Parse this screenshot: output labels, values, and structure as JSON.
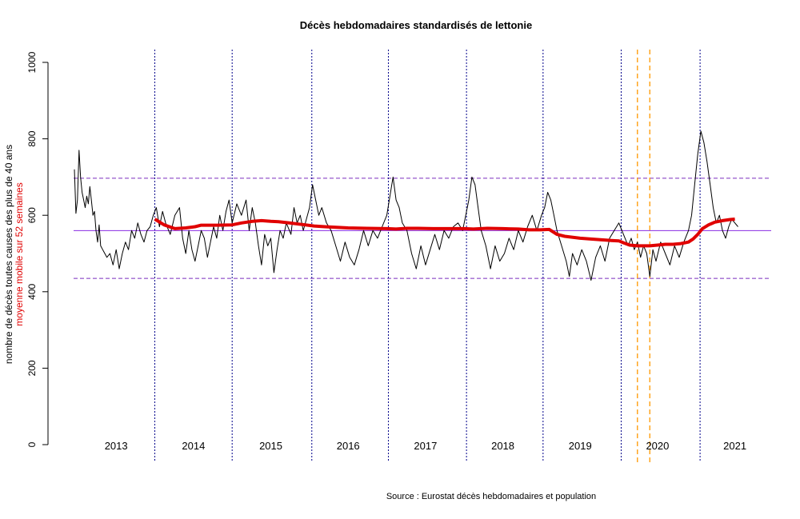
{
  "chart_data": {
    "type": "line",
    "title": "Décès hebdomadaires standardisés de lettonie",
    "ylabel": "nombre de décès toutes causes des plus de 40 ans",
    "ylabel2": "moyenne mobile sur 52 semaines",
    "source": "Source : Eurostat décès hebdomadaires et population",
    "ylim": [
      0,
      1000
    ],
    "yticks": [
      "0",
      "200",
      "400",
      "600",
      "800",
      "1000"
    ],
    "ytick_values": [
      0,
      200,
      400,
      600,
      800,
      1000
    ],
    "xlim": [
      2012.45,
      2021.18
    ],
    "year_labels": [
      {
        "label": "2013",
        "x": 2013.0
      },
      {
        "label": "2014",
        "x": 2014.0
      },
      {
        "label": "2015",
        "x": 2015.0
      },
      {
        "label": "2016",
        "x": 2016.0
      },
      {
        "label": "2017",
        "x": 2017.0
      },
      {
        "label": "2018",
        "x": 2018.0
      },
      {
        "label": "2019",
        "x": 2019.0
      },
      {
        "label": "2020",
        "x": 2020.0
      },
      {
        "label": "2021",
        "x": 2021.0
      }
    ],
    "year_separators": [
      2013.5,
      2014.5,
      2015.53,
      2016.52,
      2017.53,
      2018.52,
      2019.53,
      2020.55
    ],
    "covid_markers": [
      2019.74,
      2019.9
    ],
    "reference_lines": {
      "mean": 560,
      "upper": 697,
      "lower": 435
    },
    "colors": {
      "weekly": "#000000",
      "moving_average": "#e00000",
      "mean_line": "#8a2be2",
      "band_lines": "#7b2fbf",
      "year_separator": "#00008b",
      "covid_marker": "#ff9900",
      "ylabel2": "#e00000"
    },
    "series": [
      {
        "name": "nombre de décès toutes causes des plus de 40 ans",
        "points": [
          [
            2012.46,
            720
          ],
          [
            2012.48,
            605
          ],
          [
            2012.5,
            640
          ],
          [
            2012.52,
            770
          ],
          [
            2012.54,
            700
          ],
          [
            2012.56,
            660
          ],
          [
            2012.58,
            640
          ],
          [
            2012.6,
            620
          ],
          [
            2012.62,
            650
          ],
          [
            2012.64,
            630
          ],
          [
            2012.66,
            675
          ],
          [
            2012.68,
            640
          ],
          [
            2012.7,
            600
          ],
          [
            2012.72,
            610
          ],
          [
            2012.74,
            560
          ],
          [
            2012.76,
            530
          ],
          [
            2012.78,
            575
          ],
          [
            2012.8,
            520
          ],
          [
            2012.84,
            505
          ],
          [
            2012.88,
            490
          ],
          [
            2012.92,
            500
          ],
          [
            2012.96,
            470
          ],
          [
            2013.0,
            510
          ],
          [
            2013.04,
            460
          ],
          [
            2013.08,
            500
          ],
          [
            2013.12,
            530
          ],
          [
            2013.16,
            510
          ],
          [
            2013.2,
            560
          ],
          [
            2013.24,
            540
          ],
          [
            2013.28,
            580
          ],
          [
            2013.32,
            550
          ],
          [
            2013.36,
            530
          ],
          [
            2013.4,
            560
          ],
          [
            2013.44,
            570
          ],
          [
            2013.48,
            600
          ],
          [
            2013.52,
            620
          ],
          [
            2013.56,
            570
          ],
          [
            2013.6,
            610
          ],
          [
            2013.64,
            580
          ],
          [
            2013.7,
            550
          ],
          [
            2013.76,
            600
          ],
          [
            2013.82,
            620
          ],
          [
            2013.86,
            540
          ],
          [
            2013.9,
            500
          ],
          [
            2013.94,
            560
          ],
          [
            2013.98,
            510
          ],
          [
            2014.02,
            480
          ],
          [
            2014.06,
            520
          ],
          [
            2014.1,
            560
          ],
          [
            2014.14,
            540
          ],
          [
            2014.18,
            490
          ],
          [
            2014.22,
            530
          ],
          [
            2014.26,
            570
          ],
          [
            2014.3,
            540
          ],
          [
            2014.34,
            600
          ],
          [
            2014.38,
            560
          ],
          [
            2014.42,
            610
          ],
          [
            2014.46,
            640
          ],
          [
            2014.5,
            580
          ],
          [
            2014.56,
            630
          ],
          [
            2014.62,
            600
          ],
          [
            2014.68,
            640
          ],
          [
            2014.72,
            560
          ],
          [
            2014.76,
            620
          ],
          [
            2014.8,
            580
          ],
          [
            2014.84,
            520
          ],
          [
            2014.88,
            470
          ],
          [
            2014.92,
            550
          ],
          [
            2014.96,
            520
          ],
          [
            2015.0,
            540
          ],
          [
            2015.04,
            450
          ],
          [
            2015.08,
            510
          ],
          [
            2015.12,
            560
          ],
          [
            2015.16,
            540
          ],
          [
            2015.2,
            580
          ],
          [
            2015.26,
            550
          ],
          [
            2015.3,
            620
          ],
          [
            2015.34,
            580
          ],
          [
            2015.38,
            600
          ],
          [
            2015.42,
            560
          ],
          [
            2015.46,
            590
          ],
          [
            2015.5,
            620
          ],
          [
            2015.54,
            680
          ],
          [
            2015.58,
            640
          ],
          [
            2015.62,
            600
          ],
          [
            2015.66,
            620
          ],
          [
            2015.72,
            580
          ],
          [
            2015.78,
            560
          ],
          [
            2015.84,
            520
          ],
          [
            2015.9,
            480
          ],
          [
            2015.96,
            530
          ],
          [
            2016.02,
            490
          ],
          [
            2016.08,
            470
          ],
          [
            2016.14,
            510
          ],
          [
            2016.2,
            560
          ],
          [
            2016.26,
            520
          ],
          [
            2016.32,
            560
          ],
          [
            2016.38,
            540
          ],
          [
            2016.44,
            570
          ],
          [
            2016.5,
            600
          ],
          [
            2016.54,
            650
          ],
          [
            2016.58,
            700
          ],
          [
            2016.62,
            640
          ],
          [
            2016.66,
            620
          ],
          [
            2016.7,
            580
          ],
          [
            2016.76,
            560
          ],
          [
            2016.82,
            500
          ],
          [
            2016.88,
            460
          ],
          [
            2016.94,
            520
          ],
          [
            2017.0,
            470
          ],
          [
            2017.06,
            510
          ],
          [
            2017.12,
            550
          ],
          [
            2017.18,
            510
          ],
          [
            2017.24,
            560
          ],
          [
            2017.3,
            540
          ],
          [
            2017.36,
            570
          ],
          [
            2017.42,
            580
          ],
          [
            2017.48,
            560
          ],
          [
            2017.52,
            600
          ],
          [
            2017.56,
            640
          ],
          [
            2017.6,
            700
          ],
          [
            2017.64,
            680
          ],
          [
            2017.68,
            620
          ],
          [
            2017.72,
            560
          ],
          [
            2017.78,
            520
          ],
          [
            2017.84,
            460
          ],
          [
            2017.9,
            520
          ],
          [
            2017.96,
            480
          ],
          [
            2018.02,
            500
          ],
          [
            2018.08,
            540
          ],
          [
            2018.14,
            510
          ],
          [
            2018.2,
            560
          ],
          [
            2018.26,
            530
          ],
          [
            2018.32,
            570
          ],
          [
            2018.38,
            600
          ],
          [
            2018.44,
            560
          ],
          [
            2018.5,
            600
          ],
          [
            2018.54,
            620
          ],
          [
            2018.58,
            660
          ],
          [
            2018.62,
            640
          ],
          [
            2018.66,
            600
          ],
          [
            2018.7,
            560
          ],
          [
            2018.76,
            520
          ],
          [
            2018.82,
            480
          ],
          [
            2018.86,
            440
          ],
          [
            2018.9,
            500
          ],
          [
            2018.96,
            470
          ],
          [
            2019.02,
            510
          ],
          [
            2019.08,
            480
          ],
          [
            2019.14,
            430
          ],
          [
            2019.2,
            490
          ],
          [
            2019.26,
            520
          ],
          [
            2019.32,
            480
          ],
          [
            2019.38,
            540
          ],
          [
            2019.44,
            560
          ],
          [
            2019.5,
            580
          ],
          [
            2019.54,
            560
          ],
          [
            2019.58,
            540
          ],
          [
            2019.62,
            520
          ],
          [
            2019.66,
            540
          ],
          [
            2019.7,
            510
          ],
          [
            2019.74,
            530
          ],
          [
            2019.78,
            490
          ],
          [
            2019.82,
            520
          ],
          [
            2019.86,
            500
          ],
          [
            2019.9,
            440
          ],
          [
            2019.94,
            510
          ],
          [
            2019.98,
            480
          ],
          [
            2020.04,
            530
          ],
          [
            2020.1,
            500
          ],
          [
            2020.16,
            470
          ],
          [
            2020.22,
            520
          ],
          [
            2020.28,
            490
          ],
          [
            2020.34,
            530
          ],
          [
            2020.4,
            560
          ],
          [
            2020.44,
            600
          ],
          [
            2020.48,
            680
          ],
          [
            2020.52,
            760
          ],
          [
            2020.56,
            820
          ],
          [
            2020.6,
            790
          ],
          [
            2020.64,
            740
          ],
          [
            2020.68,
            680
          ],
          [
            2020.72,
            620
          ],
          [
            2020.76,
            580
          ],
          [
            2020.8,
            600
          ],
          [
            2020.84,
            560
          ],
          [
            2020.88,
            540
          ],
          [
            2020.92,
            570
          ],
          [
            2020.96,
            590
          ],
          [
            2021.0,
            580
          ],
          [
            2021.04,
            570
          ]
        ]
      },
      {
        "name": "moyenne mobile sur 52 semaines",
        "points": [
          [
            2013.5,
            590
          ],
          [
            2013.62,
            575
          ],
          [
            2013.76,
            565
          ],
          [
            2013.9,
            567
          ],
          [
            2014.02,
            570
          ],
          [
            2014.1,
            574
          ],
          [
            2014.3,
            574
          ],
          [
            2014.5,
            575
          ],
          [
            2014.62,
            580
          ],
          [
            2014.76,
            584
          ],
          [
            2014.88,
            586
          ],
          [
            2015.0,
            584
          ],
          [
            2015.1,
            583
          ],
          [
            2015.24,
            580
          ],
          [
            2015.4,
            576
          ],
          [
            2015.56,
            572
          ],
          [
            2015.7,
            570
          ],
          [
            2016.0,
            567
          ],
          [
            2016.24,
            566
          ],
          [
            2016.5,
            565
          ],
          [
            2016.62,
            564
          ],
          [
            2016.76,
            566
          ],
          [
            2016.9,
            566
          ],
          [
            2017.1,
            565
          ],
          [
            2017.3,
            565
          ],
          [
            2017.5,
            565
          ],
          [
            2017.62,
            564
          ],
          [
            2017.8,
            566
          ],
          [
            2018.0,
            565
          ],
          [
            2018.2,
            564
          ],
          [
            2018.34,
            562
          ],
          [
            2018.48,
            562
          ],
          [
            2018.6,
            563
          ],
          [
            2018.7,
            550
          ],
          [
            2018.8,
            545
          ],
          [
            2019.0,
            540
          ],
          [
            2019.12,
            538
          ],
          [
            2019.26,
            536
          ],
          [
            2019.4,
            534
          ],
          [
            2019.5,
            533
          ],
          [
            2019.56,
            528
          ],
          [
            2019.64,
            522
          ],
          [
            2019.74,
            520
          ],
          [
            2019.9,
            520
          ],
          [
            2020.0,
            522
          ],
          [
            2020.1,
            524
          ],
          [
            2020.2,
            524
          ],
          [
            2020.3,
            526
          ],
          [
            2020.4,
            530
          ],
          [
            2020.46,
            538
          ],
          [
            2020.52,
            550
          ],
          [
            2020.58,
            565
          ],
          [
            2020.66,
            575
          ],
          [
            2020.74,
            582
          ],
          [
            2020.84,
            586
          ],
          [
            2020.94,
            589
          ],
          [
            2021.0,
            590
          ]
        ]
      }
    ]
  }
}
